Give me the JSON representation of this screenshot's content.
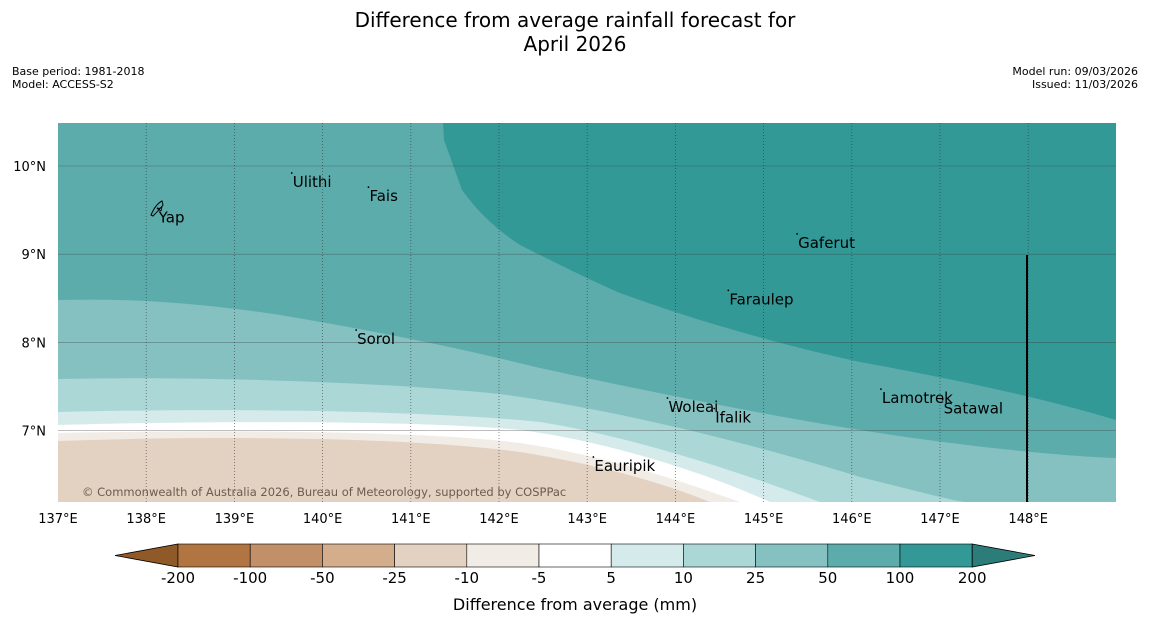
{
  "title_line1": "Difference from average rainfall forecast for",
  "title_line2": "April 2026",
  "meta": {
    "base_period": "Base period: 1981-2018",
    "model": "Model: ACCESS-S2",
    "model_run": "Model run: 09/03/2026",
    "issued": "Issued: 11/03/2026"
  },
  "copyright": "© Commonwealth of Australia 2026, Bureau of Meteorology, supported by COSPPac",
  "lon_labels": [
    "137°E",
    "138°E",
    "139°E",
    "140°E",
    "141°E",
    "142°E",
    "143°E",
    "144°E",
    "145°E",
    "146°E",
    "147°E",
    "148°E"
  ],
  "lat_labels": [
    "10°N",
    "9°N",
    "8°N",
    "7°N"
  ],
  "places": [
    {
      "name": "Ulithi",
      "lon": 139.65,
      "lat": 9.92
    },
    {
      "name": "Fais",
      "lon": 140.52,
      "lat": 9.76
    },
    {
      "name": "Yap",
      "lon": 138.13,
      "lat": 9.52
    },
    {
      "name": "Gaferut",
      "lon": 145.38,
      "lat": 9.23
    },
    {
      "name": "Faraulep",
      "lon": 144.6,
      "lat": 8.59
    },
    {
      "name": "Sorol",
      "lon": 140.38,
      "lat": 8.14
    },
    {
      "name": "Woleai",
      "lon": 143.91,
      "lat": 7.37
    },
    {
      "name": "Ifalik",
      "lon": 144.44,
      "lat": 7.25
    },
    {
      "name": "Lamotrek",
      "lon": 146.33,
      "lat": 7.47
    },
    {
      "name": "Satawal",
      "lon": 147.03,
      "lat": 7.35
    },
    {
      "name": "Eauripik",
      "lon": 143.07,
      "lat": 6.7
    }
  ],
  "colorbar": {
    "ticks": [
      "-200",
      "-100",
      "-50",
      "-25",
      "-10",
      "-5",
      "5",
      "10",
      "25",
      "50",
      "100",
      "200"
    ],
    "colors": [
      "#8f5a28",
      "#b07540",
      "#c29068",
      "#d4ae8c",
      "#e3d1c1",
      "#f1ece6",
      "#ffffff",
      "#d5eaea",
      "#abd7d7",
      "#86c1c1",
      "#5dacac",
      "#339997",
      "#2c7c7a"
    ],
    "label": "Difference from average (mm)"
  },
  "chart_data": {
    "type": "heatmap",
    "title": "Difference from average rainfall forecast for April 2026",
    "units": "mm",
    "lon_range": [
      137,
      149
    ],
    "lat_range": [
      6.2,
      10.5
    ],
    "levels": [
      -200,
      -100,
      -50,
      -25,
      -10,
      -5,
      5,
      10,
      25,
      50,
      100,
      200
    ],
    "summary": "Wetter than average (+100 to +200 mm) over the north-east; gradient to near average and drier (-10 to -50 mm) over the south-west corner"
  }
}
